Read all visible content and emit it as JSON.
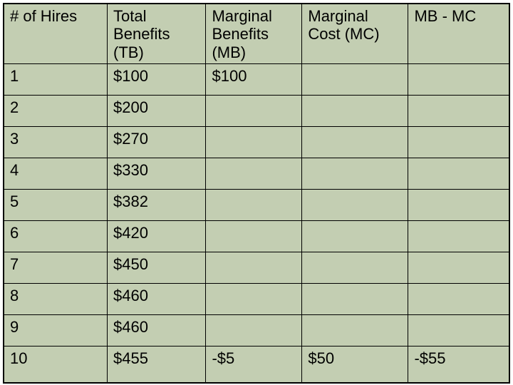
{
  "table": {
    "background_color": "#c3ceb2",
    "border_color": "#000000",
    "text_color": "#000000",
    "font_family": "Arial",
    "header_fontsize": 22,
    "cell_fontsize": 22,
    "columns": [
      {
        "label": "# of Hires",
        "width_pct": 20.5
      },
      {
        "label": "Total Benefits (TB)",
        "width_pct": 19.5
      },
      {
        "label": "Marginal Benefits (MB)",
        "width_pct": 19.0
      },
      {
        "label": "Marginal Cost  (MC)",
        "width_pct": 21.0
      },
      {
        "label": "MB - MC",
        "width_pct": 20.0
      }
    ],
    "rows": [
      [
        "1",
        "$100",
        "$100",
        "",
        ""
      ],
      [
        "2",
        "$200",
        "",
        "",
        ""
      ],
      [
        "3",
        "$270",
        "",
        "",
        ""
      ],
      [
        "4",
        "$330",
        "",
        "",
        ""
      ],
      [
        "5",
        "$382",
        "",
        "",
        ""
      ],
      [
        "6",
        "$420",
        "",
        "",
        ""
      ],
      [
        "7",
        "$450",
        "",
        "",
        ""
      ],
      [
        "8",
        "$460",
        "",
        "",
        ""
      ],
      [
        "9",
        "$460",
        "",
        "",
        ""
      ],
      [
        "10",
        "$455",
        "-$5",
        "$50",
        "-$55"
      ]
    ]
  }
}
